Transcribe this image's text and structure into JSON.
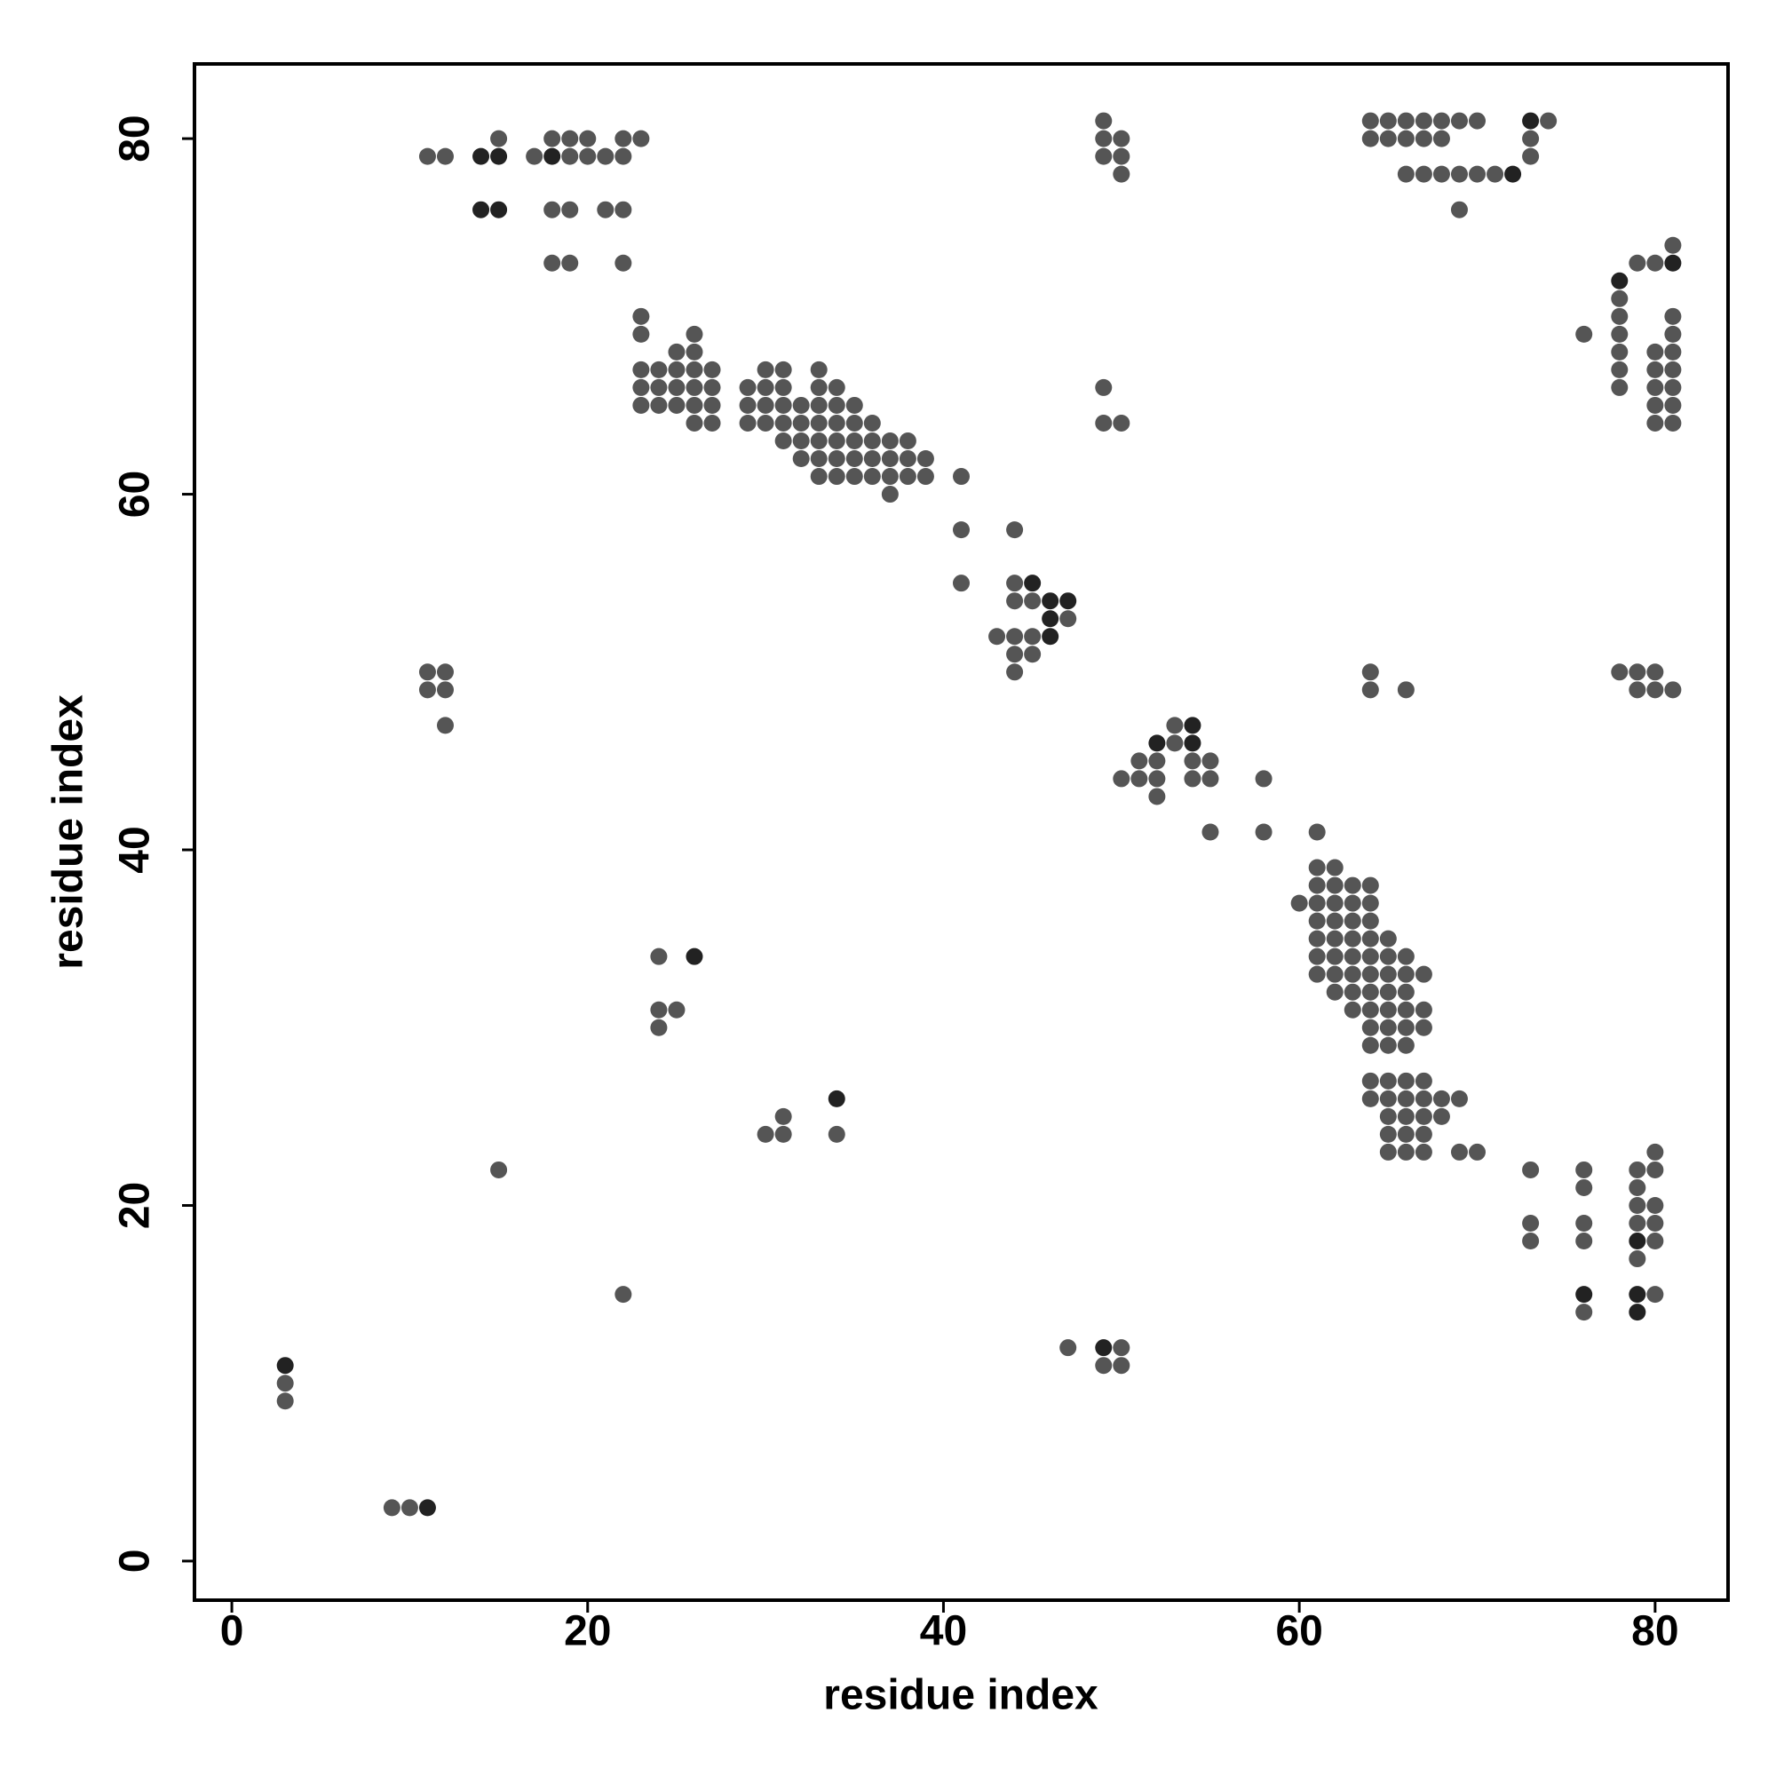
{
  "chart_data": {
    "type": "scatter",
    "x_label": "residue index",
    "y_label": "residue index",
    "xlim": [
      -2.1,
      84.1
    ],
    "ylim": [
      -2.2,
      84.2
    ],
    "xticks": [
      0,
      20,
      40,
      60,
      80
    ],
    "yticks": [
      0,
      20,
      40,
      60,
      80
    ],
    "series": [
      {
        "color": "#555555",
        "x": [
          49,
          64,
          65,
          66,
          67,
          68,
          69,
          70,
          74,
          15,
          18,
          19,
          20,
          22,
          23,
          49,
          50,
          64,
          65,
          66,
          67,
          68,
          73,
          11,
          12,
          17,
          19,
          20,
          21,
          22,
          49,
          50,
          73,
          50,
          66,
          67,
          68,
          69,
          70,
          71,
          18,
          19,
          21,
          22,
          69,
          81,
          18,
          19,
          22,
          79,
          80,
          78,
          23,
          78,
          81,
          23,
          26,
          76,
          78,
          81,
          25,
          26,
          78,
          80,
          81,
          23,
          24,
          25,
          26,
          27,
          30,
          31,
          33,
          78,
          80,
          81,
          23,
          24,
          25,
          26,
          27,
          29,
          30,
          31,
          33,
          34,
          49,
          78,
          80,
          81,
          23,
          24,
          25,
          26,
          27,
          29,
          30,
          31,
          32,
          33,
          34,
          35,
          80,
          81,
          26,
          27,
          29,
          30,
          31,
          32,
          33,
          34,
          35,
          36,
          49,
          50,
          80,
          81,
          31,
          32,
          33,
          34,
          35,
          36,
          37,
          38,
          32,
          33,
          34,
          35,
          36,
          37,
          38,
          39,
          33,
          34,
          35,
          36,
          37,
          38,
          39,
          41,
          37,
          41,
          44,
          41,
          44,
          44,
          45,
          47,
          43,
          44,
          45,
          44,
          45,
          11,
          12,
          44,
          64,
          78,
          79,
          80,
          11,
          12,
          64,
          66,
          79,
          80,
          81,
          12,
          53,
          53,
          51,
          52,
          54,
          55,
          50,
          51,
          52,
          54,
          55,
          58,
          52,
          55,
          58,
          61,
          61,
          62,
          61,
          62,
          63,
          64,
          60,
          61,
          62,
          63,
          64,
          61,
          62,
          63,
          64,
          61,
          62,
          63,
          64,
          65,
          24,
          61,
          62,
          63,
          64,
          65,
          66,
          61,
          62,
          63,
          64,
          65,
          66,
          67,
          62,
          63,
          64,
          65,
          66,
          24,
          25,
          63,
          64,
          65,
          66,
          67,
          24,
          64,
          65,
          66,
          67,
          64,
          65,
          66,
          64,
          65,
          66,
          67,
          64,
          65,
          66,
          67,
          68,
          69,
          31,
          65,
          66,
          67,
          68,
          30,
          31,
          34,
          65,
          66,
          67,
          65,
          66,
          67,
          69,
          70,
          80,
          15,
          73,
          76,
          79,
          80,
          76,
          79,
          79,
          80,
          73,
          76,
          79,
          80,
          73,
          76,
          80,
          79,
          22,
          80,
          76,
          47,
          50,
          49,
          50,
          3,
          3,
          9,
          10
        ],
        "y": [
          81,
          81,
          81,
          81,
          81,
          81,
          81,
          81,
          81,
          80,
          80,
          80,
          80,
          80,
          80,
          80,
          80,
          80,
          80,
          80,
          80,
          80,
          80,
          79,
          79,
          79,
          79,
          79,
          79,
          79,
          79,
          79,
          79,
          78,
          78,
          78,
          78,
          78,
          78,
          78,
          76,
          76,
          76,
          76,
          76,
          74,
          73,
          73,
          73,
          73,
          73,
          71,
          70,
          70,
          70,
          69,
          69,
          69,
          69,
          69,
          68,
          68,
          68,
          68,
          68,
          67,
          67,
          67,
          67,
          67,
          67,
          67,
          67,
          67,
          67,
          67,
          66,
          66,
          66,
          66,
          66,
          66,
          66,
          66,
          66,
          66,
          66,
          66,
          66,
          66,
          65,
          65,
          65,
          65,
          65,
          65,
          65,
          65,
          65,
          65,
          65,
          65,
          65,
          65,
          64,
          64,
          64,
          64,
          64,
          64,
          64,
          64,
          64,
          64,
          64,
          64,
          64,
          64,
          63,
          63,
          63,
          63,
          63,
          63,
          63,
          63,
          62,
          62,
          62,
          62,
          62,
          62,
          62,
          62,
          61,
          61,
          61,
          61,
          61,
          61,
          61,
          61,
          60,
          58,
          58,
          55,
          55,
          54,
          54,
          53,
          52,
          52,
          52,
          51,
          51,
          50,
          50,
          50,
          50,
          50,
          50,
          50,
          49,
          49,
          49,
          49,
          49,
          49,
          49,
          47,
          47,
          46,
          45,
          45,
          45,
          45,
          44,
          44,
          44,
          44,
          44,
          44,
          43,
          41,
          41,
          41,
          39,
          39,
          38,
          38,
          38,
          38,
          37,
          37,
          37,
          37,
          37,
          36,
          36,
          36,
          36,
          35,
          35,
          35,
          35,
          35,
          34,
          34,
          34,
          34,
          34,
          34,
          34,
          33,
          33,
          33,
          33,
          33,
          33,
          33,
          32,
          32,
          32,
          32,
          32,
          31,
          31,
          31,
          31,
          31,
          31,
          31,
          30,
          30,
          30,
          30,
          30,
          29,
          29,
          29,
          27,
          27,
          27,
          27,
          26,
          26,
          26,
          26,
          26,
          26,
          25,
          25,
          25,
          25,
          25,
          24,
          24,
          24,
          24,
          24,
          24,
          23,
          23,
          23,
          23,
          23,
          23,
          22,
          22,
          22,
          22,
          22,
          21,
          21,
          20,
          20,
          19,
          19,
          19,
          19,
          18,
          18,
          18,
          17,
          15,
          15,
          14,
          12,
          12,
          11,
          11,
          10,
          9,
          3,
          3
        ]
      },
      {
        "color": "#222222",
        "x": [
          73,
          14,
          15,
          18,
          72,
          14,
          15,
          81,
          78,
          45,
          46,
          47,
          46,
          46,
          54,
          52,
          54,
          26,
          34,
          79,
          76,
          79,
          79,
          49,
          3,
          11
        ],
        "y": [
          81,
          79,
          79,
          79,
          78,
          76,
          76,
          73,
          72,
          55,
          54,
          54,
          53,
          52,
          47,
          46,
          46,
          34,
          26,
          18,
          15,
          15,
          14,
          12,
          11,
          3
        ]
      }
    ]
  }
}
